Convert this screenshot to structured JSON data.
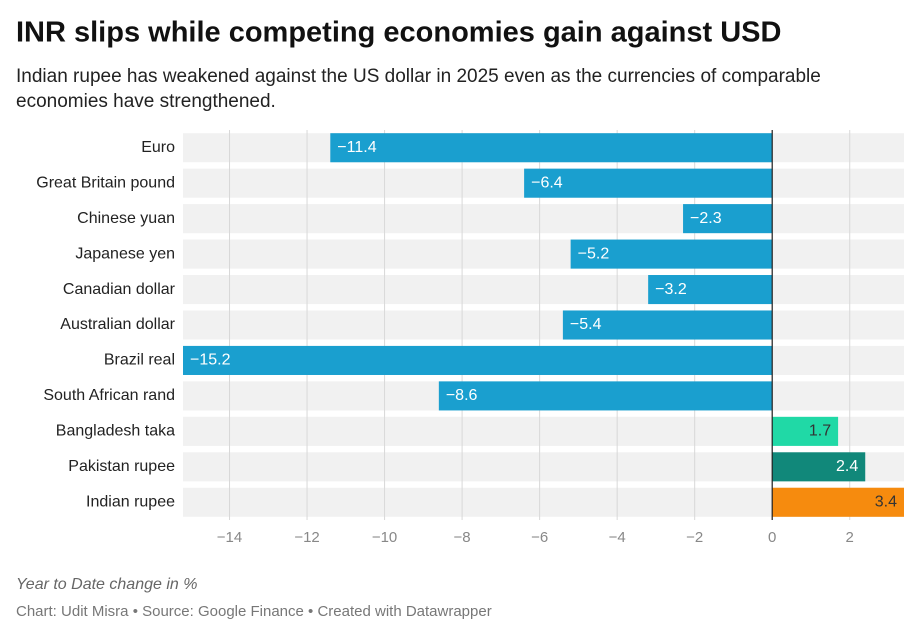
{
  "chart_data": {
    "type": "bar",
    "orientation": "horizontal",
    "title": "INR slips while competing economies gain against USD",
    "subtitle": "Indian rupee has weakened against the US dollar in 2025 even as the currencies of comparable economies have strengthened.",
    "x_axis_label": "Year to Date change in %",
    "footer": "Chart: Udit Misra • Source: Google Finance • Created with Datawrapper",
    "categories": [
      "Euro",
      "Great Britain pound",
      "Chinese yuan",
      "Japanese yen",
      "Canadian dollar",
      "Australian dollar",
      "Brazil real",
      "South African rand",
      "Bangladesh taka",
      "Pakistan rupee",
      "Indian rupee"
    ],
    "values": [
      -11.4,
      -6.4,
      -2.3,
      -5.2,
      -3.2,
      -5.4,
      -15.2,
      -8.6,
      1.7,
      2.4,
      3.4
    ],
    "value_labels": [
      "−11.4",
      "−6.4",
      "−2.3",
      "−5.2",
      "−3.2",
      "−5.4",
      "−15.2",
      "−8.6",
      "1.7",
      "2.4",
      "3.4"
    ],
    "colors": [
      "#1a9fcf",
      "#1a9fcf",
      "#1a9fcf",
      "#1a9fcf",
      "#1a9fcf",
      "#1a9fcf",
      "#1a9fcf",
      "#1a9fcf",
      "#20d9a6",
      "#11887a",
      "#f68b0e"
    ],
    "xlim": [
      -15.2,
      3.4
    ],
    "xticks": [
      {
        "value": -14,
        "label": "−14"
      },
      {
        "value": -12,
        "label": "−12"
      },
      {
        "value": -10,
        "label": "−10"
      },
      {
        "value": -8,
        "label": "−8"
      },
      {
        "value": -6,
        "label": "−6"
      },
      {
        "value": -4,
        "label": "−4"
      },
      {
        "value": -2,
        "label": "−2"
      },
      0,
      2
    ],
    "grid": true
  }
}
